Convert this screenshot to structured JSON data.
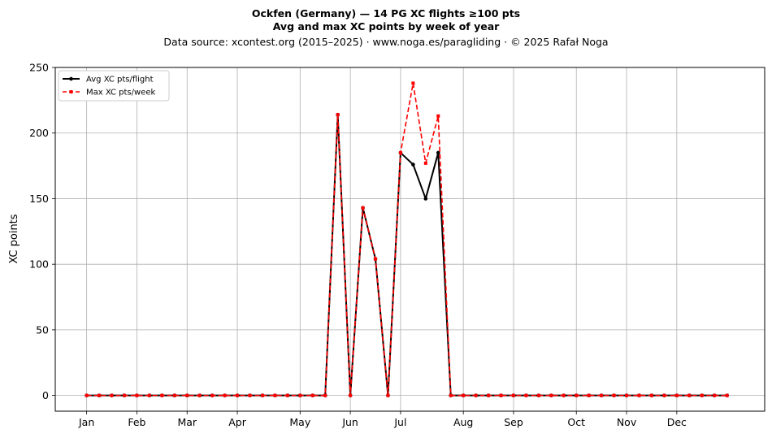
{
  "chart_data": {
    "type": "line",
    "title_line1": "Ockfen (Germany)  —  14 PG XC flights ≥100 pts",
    "title_line2": "Avg and max XC points by week of year",
    "subtitle": "Data source: xcontest.org (2015–2025)  ·  www.noga.es/paragliding  ·  © 2025 Rafał Noga",
    "xlabel": "",
    "ylabel": "XC points",
    "ylim": [
      -12,
      250
    ],
    "yticks": [
      0,
      50,
      100,
      150,
      200,
      250
    ],
    "xlim": [
      -1.5,
      55
    ],
    "month_ticks": [
      {
        "label": "Jan",
        "week": 1
      },
      {
        "label": "Feb",
        "week": 5
      },
      {
        "label": "Mar",
        "week": 9
      },
      {
        "label": "Apr",
        "week": 13
      },
      {
        "label": "May",
        "week": 18
      },
      {
        "label": "Jun",
        "week": 22
      },
      {
        "label": "Jul",
        "week": 26
      },
      {
        "label": "Aug",
        "week": 31
      },
      {
        "label": "Sep",
        "week": 35
      },
      {
        "label": "Oct",
        "week": 40
      },
      {
        "label": "Nov",
        "week": 44
      },
      {
        "label": "Dec",
        "week": 48
      }
    ],
    "grid": true,
    "legend_position": "top-left",
    "x": [
      1,
      2,
      3,
      4,
      5,
      6,
      7,
      8,
      9,
      10,
      11,
      12,
      13,
      14,
      15,
      16,
      17,
      18,
      19,
      20,
      21,
      22,
      23,
      24,
      25,
      26,
      27,
      28,
      29,
      30,
      31,
      32,
      33,
      34,
      35,
      36,
      37,
      38,
      39,
      40,
      41,
      42,
      43,
      44,
      45,
      46,
      47,
      48,
      49,
      50,
      51,
      52
    ],
    "series": [
      {
        "name": "Avg XC pts/flight",
        "color": "#000000",
        "marker": "circle",
        "style": "solid",
        "values": [
          0,
          0,
          0,
          0,
          0,
          0,
          0,
          0,
          0,
          0,
          0,
          0,
          0,
          0,
          0,
          0,
          0,
          0,
          0,
          0,
          214,
          0,
          143,
          104,
          0,
          185,
          176,
          150,
          185,
          0,
          0,
          0,
          0,
          0,
          0,
          0,
          0,
          0,
          0,
          0,
          0,
          0,
          0,
          0,
          0,
          0,
          0,
          0,
          0,
          0,
          0,
          0
        ]
      },
      {
        "name": "Max XC pts/week",
        "color": "#ff0000",
        "marker": "square",
        "style": "dashed",
        "values": [
          0,
          0,
          0,
          0,
          0,
          0,
          0,
          0,
          0,
          0,
          0,
          0,
          0,
          0,
          0,
          0,
          0,
          0,
          0,
          0,
          214,
          0,
          143,
          104,
          0,
          185,
          238,
          177,
          213,
          0,
          0,
          0,
          0,
          0,
          0,
          0,
          0,
          0,
          0,
          0,
          0,
          0,
          0,
          0,
          0,
          0,
          0,
          0,
          0,
          0,
          0,
          0
        ]
      }
    ]
  }
}
